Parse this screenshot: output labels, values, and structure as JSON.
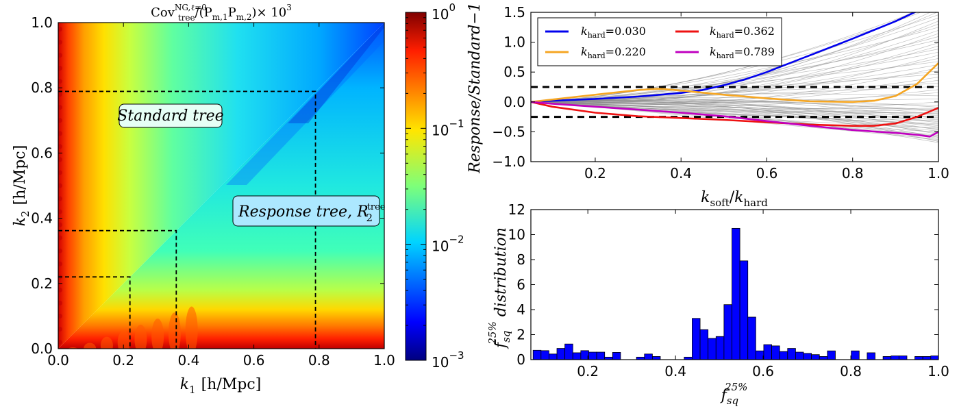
{
  "colors": {
    "blue": "#0000ee",
    "orange": "#f5a623",
    "red": "#ee1111",
    "magenta": "#c000c0",
    "grey": "#8c8c8c",
    "hist_bar": "#0000ff",
    "annotation_box": "#e6fff6"
  },
  "chart_data": [
    {
      "type": "heatmap",
      "title": "Cov_tree^{NG,ℓ=0}/(P_{m,1}P_{m,2})×10^3",
      "title_parts": {
        "base": "Cov",
        "sub": "tree",
        "sup": "NG,ℓ=0",
        "rest": "/(P",
        "m1": "m,1",
        "mid": "P",
        "m2": "m,2",
        "end": ")× 10",
        "exp": "3"
      },
      "xlabel": "k_1 [h/Mpc]",
      "xlabel_parts": {
        "var": "k",
        "sub": "1",
        "unit": "[h/Mpc]"
      },
      "ylabel": "k_2 [h/Mpc]",
      "ylabel_parts": {
        "var": "k",
        "sub": "2",
        "unit": "[h/Mpc]"
      },
      "xlim": [
        0,
        1
      ],
      "ylim": [
        0,
        1
      ],
      "xticks": [
        "0.0",
        "0.2",
        "0.4",
        "0.6",
        "0.8",
        "1.0"
      ],
      "yticks": [
        "0.0",
        "0.2",
        "0.4",
        "0.6",
        "0.8",
        "1.0"
      ],
      "colorbar": {
        "scale": "log",
        "range": [
          0.001,
          1
        ],
        "ticks": [
          {
            "base": "10",
            "exp": "0"
          },
          {
            "base": "10",
            "exp": "−1"
          },
          {
            "base": "10",
            "exp": "−2"
          },
          {
            "base": "10",
            "exp": "−3"
          }
        ]
      },
      "dashed_boxes_k": [
        0.22,
        0.362,
        0.789
      ],
      "annotations": {
        "standard": "Standard tree",
        "response": "Response tree, ",
        "response_symbol": "R",
        "response_sub": "2",
        "response_sup": "tree"
      }
    },
    {
      "type": "line",
      "xlabel": "k_soft/k_hard",
      "xlabel_parts": {
        "a": "k",
        "a_sub": "soft",
        "slash": "/",
        "b": "k",
        "b_sub": "hard"
      },
      "ylabel": "Response/Standard−1",
      "xlim": [
        0.05,
        1.0
      ],
      "ylim": [
        -1.0,
        1.5
      ],
      "xticks": [
        "0.2",
        "0.4",
        "0.6",
        "0.8",
        "1.0"
      ],
      "yticks": [
        "−1.0",
        "−0.5",
        "0.0",
        "0.5",
        "1.0",
        "1.5"
      ],
      "hlines": [
        0.25,
        -0.25
      ],
      "legend_position": "top-left",
      "series": [
        {
          "name": "k_hard=0.030",
          "label_var": "k",
          "label_sub": "hard",
          "label_val": "=0.030",
          "color_key": "blue",
          "x": [
            0.05,
            0.1,
            0.2,
            0.3,
            0.4,
            0.45,
            0.5,
            0.55,
            0.6,
            0.7,
            0.8,
            0.9,
            0.95
          ],
          "y": [
            0.0,
            0.02,
            0.05,
            0.09,
            0.15,
            0.2,
            0.28,
            0.38,
            0.5,
            0.78,
            1.06,
            1.35,
            1.52
          ]
        },
        {
          "name": "k_hard=0.220",
          "label_var": "k",
          "label_sub": "hard",
          "label_val": "=0.220",
          "color_key": "orange",
          "x": [
            0.05,
            0.1,
            0.2,
            0.3,
            0.35,
            0.4,
            0.5,
            0.6,
            0.7,
            0.8,
            0.85,
            0.9,
            0.95,
            1.0
          ],
          "y": [
            0.0,
            0.04,
            0.12,
            0.2,
            0.22,
            0.19,
            0.12,
            0.06,
            0.01,
            0.0,
            0.02,
            0.1,
            0.3,
            0.65
          ]
        },
        {
          "name": "k_hard=0.362",
          "label_var": "k",
          "label_sub": "hard",
          "label_val": "=0.362",
          "color_key": "red",
          "x": [
            0.05,
            0.1,
            0.2,
            0.3,
            0.4,
            0.5,
            0.6,
            0.7,
            0.8,
            0.85,
            0.9,
            0.95,
            1.0
          ],
          "y": [
            0.0,
            -0.08,
            -0.18,
            -0.24,
            -0.27,
            -0.3,
            -0.34,
            -0.38,
            -0.4,
            -0.4,
            -0.36,
            -0.25,
            -0.1
          ]
        },
        {
          "name": "k_hard=0.789",
          "label_var": "k",
          "label_sub": "hard",
          "label_val": "=0.789",
          "color_key": "magenta",
          "x": [
            0.05,
            0.1,
            0.2,
            0.3,
            0.4,
            0.5,
            0.6,
            0.7,
            0.8,
            0.9,
            0.95,
            0.98,
            1.0
          ],
          "y": [
            0.0,
            -0.03,
            -0.08,
            -0.13,
            -0.18,
            -0.24,
            -0.32,
            -0.4,
            -0.47,
            -0.52,
            -0.55,
            -0.58,
            -0.5
          ]
        }
      ]
    },
    {
      "type": "bar",
      "subtype": "histogram",
      "xlabel": "f_sq^25%",
      "ylabel": "f_sq^25% distribution",
      "label_parts": {
        "var": "f",
        "sub": "sq",
        "sup": "25%",
        "word": " distribution"
      },
      "xlim": [
        0.07,
        1.0
      ],
      "ylim": [
        0,
        12
      ],
      "xticks": [
        "0.2",
        "0.4",
        "0.6",
        "0.8",
        "1.0"
      ],
      "yticks": [
        "0",
        "2",
        "4",
        "6",
        "8",
        "10",
        "12"
      ],
      "bin_width": 0.01815,
      "bin_start": 0.075,
      "values": [
        0.75,
        0.72,
        0.45,
        0.9,
        1.25,
        0.55,
        0.72,
        0.6,
        0.6,
        0.2,
        0.58,
        0,
        0,
        0.2,
        0.45,
        0.25,
        0,
        0,
        0,
        0.2,
        3.3,
        2.4,
        1.7,
        1.85,
        4.4,
        10.5,
        7.9,
        3.4,
        0.7,
        1.2,
        1.1,
        0.65,
        0.9,
        0.6,
        0.5,
        0.4,
        0.25,
        0.7,
        0,
        0,
        0.7,
        0,
        0.55,
        0,
        0.25,
        0.3,
        0.3,
        0,
        0.25,
        0.25,
        0.3,
        0.45,
        1.2
      ]
    }
  ]
}
